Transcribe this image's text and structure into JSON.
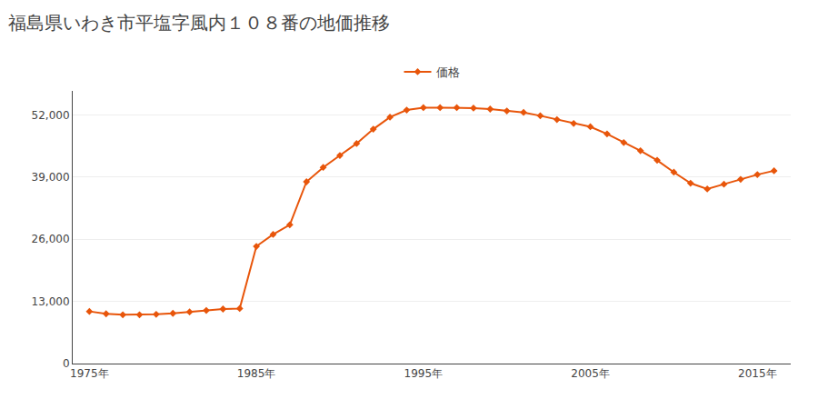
{
  "chart_data": {
    "type": "line",
    "title": "福島県いわき市平塩字風内１０８番の地価推移",
    "x": [
      1975,
      1976,
      1977,
      1978,
      1979,
      1980,
      1981,
      1982,
      1983,
      1984,
      1985,
      1986,
      1987,
      1988,
      1989,
      1990,
      1991,
      1992,
      1993,
      1994,
      1995,
      1996,
      1997,
      1998,
      1999,
      2000,
      2001,
      2002,
      2003,
      2004,
      2005,
      2006,
      2007,
      2008,
      2009,
      2010,
      2011,
      2012,
      2013,
      2014,
      2015,
      2016
    ],
    "series": [
      {
        "name": "価格",
        "color": "#E8550A",
        "marker": "diamond",
        "values": [
          10900,
          10400,
          10200,
          10200,
          10300,
          10500,
          10800,
          11100,
          11400,
          11500,
          24500,
          27000,
          29000,
          38000,
          41000,
          43500,
          46000,
          49000,
          51500,
          53000,
          53500,
          53500,
          53500,
          53400,
          53200,
          52800,
          52500,
          51800,
          51000,
          50200,
          49500,
          48000,
          46200,
          44500,
          42500,
          40000,
          37700,
          36500,
          37500,
          38500,
          39500,
          40300
        ]
      }
    ],
    "xlim": [
      1974,
      2017
    ],
    "xticks": [
      {
        "value": 1975,
        "label": "1975年"
      },
      {
        "value": 1985,
        "label": "1985年"
      },
      {
        "value": 1995,
        "label": "1995年"
      },
      {
        "value": 2005,
        "label": "2005年"
      },
      {
        "value": 2015,
        "label": "2015年"
      }
    ],
    "ylim": [
      0,
      57000
    ],
    "yticks": [
      0,
      {
        "value": 13000,
        "label": "13,000"
      },
      {
        "value": 26000,
        "label": "26,000"
      },
      {
        "value": 39000,
        "label": "39,000"
      },
      {
        "value": 52000,
        "label": "52,000"
      }
    ],
    "grid": "y",
    "legend": "top"
  }
}
